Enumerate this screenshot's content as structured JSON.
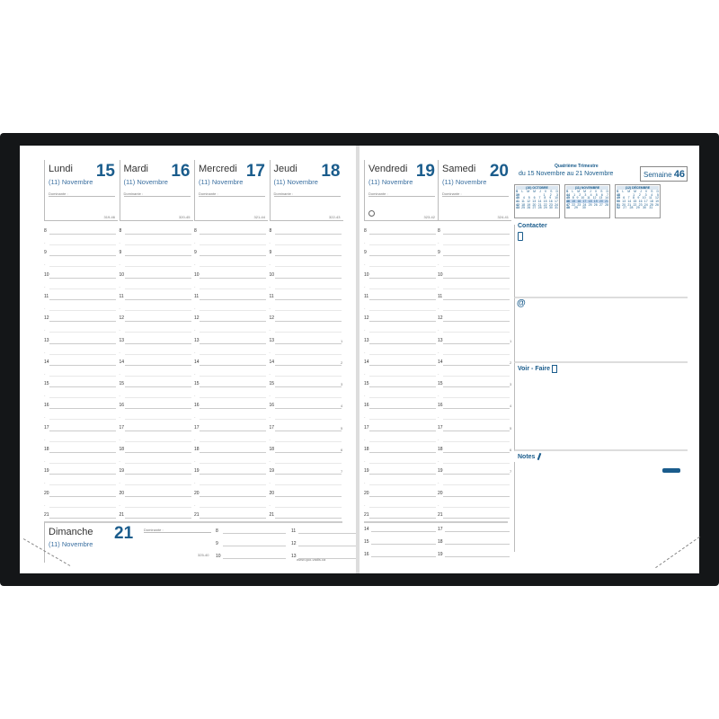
{
  "hours": [
    "8",
    "9",
    "10",
    "11",
    "12",
    "13",
    "14",
    "15",
    "16",
    "17",
    "18",
    "19",
    "20",
    "21"
  ],
  "side_numbers": [
    "1",
    "2",
    "3",
    "4",
    "5",
    "6",
    "7"
  ],
  "dominante_label": "Dominante :",
  "days_left": [
    {
      "name": "Lundi",
      "num": "15",
      "month": "(11) Novembre",
      "code": "319-46"
    },
    {
      "name": "Mardi",
      "num": "16",
      "month": "(11) Novembre",
      "code": "320-45"
    },
    {
      "name": "Mercredi",
      "num": "17",
      "month": "(11) Novembre",
      "code": "321-44"
    },
    {
      "name": "Jeudi",
      "num": "18",
      "month": "(11) Novembre",
      "code": "322-43"
    }
  ],
  "days_right": [
    {
      "name": "Vendredi",
      "num": "19",
      "month": "(11) Novembre",
      "code": "323-42"
    },
    {
      "name": "Samedi",
      "num": "20",
      "month": "(11) Novembre",
      "code": "324-41"
    }
  ],
  "sunday": {
    "name": "Dimanche",
    "num": "21",
    "month": "(11) Novembre",
    "code": "325-40",
    "hours_a": [
      "8",
      "9",
      "10"
    ],
    "hours_b": [
      "11",
      "12",
      "13"
    ]
  },
  "saturday_extra": {
    "hours_a": [
      "14",
      "15",
      "16"
    ],
    "hours_b": [
      "17",
      "18",
      "19"
    ]
  },
  "website": "www.quo-vadis.ca",
  "quarter": {
    "title": "Quatrième Trimestre",
    "range": "du 15 Novembre au 21 Novembre"
  },
  "week": {
    "label": "Semaine",
    "num": "46"
  },
  "calendars": [
    {
      "month": "(10) OCTOBRE",
      "rows": [
        [
          "S",
          "L",
          "M",
          "M",
          "J",
          "V",
          "S",
          "D"
        ],
        [
          "39",
          "",
          "",
          "",
          "",
          "1",
          "2",
          "3"
        ],
        [
          "40",
          "4",
          "5",
          "6",
          "7",
          "8",
          "9",
          "10"
        ],
        [
          "41",
          "11",
          "12",
          "13",
          "14",
          "15",
          "16",
          "17"
        ],
        [
          "42",
          "18",
          "19",
          "20",
          "21",
          "22",
          "23",
          "24"
        ],
        [
          "43",
          "25",
          "26",
          "27",
          "28",
          "29",
          "30",
          "31"
        ]
      ]
    },
    {
      "month": "(11) NOVEMBRE",
      "rows": [
        [
          "S",
          "L",
          "M",
          "M",
          "J",
          "V",
          "S",
          "D"
        ],
        [
          "44",
          "1",
          "2",
          "3",
          "4",
          "5",
          "6",
          "7"
        ],
        [
          "45",
          "8",
          "9",
          "10",
          "11",
          "12",
          "13",
          "14"
        ],
        [
          "46",
          "15",
          "16",
          "17",
          "18",
          "19",
          "20",
          "21"
        ],
        [
          "47",
          "22",
          "23",
          "24",
          "25",
          "26",
          "27",
          "28"
        ],
        [
          "48",
          "29",
          "30",
          "",
          "",
          "",
          "",
          ""
        ]
      ]
    },
    {
      "month": "(12) DÉCEMBRE",
      "rows": [
        [
          "S",
          "L",
          "M",
          "M",
          "J",
          "V",
          "S",
          "D"
        ],
        [
          "48",
          "",
          "",
          "1",
          "2",
          "3",
          "4",
          "5"
        ],
        [
          "49",
          "6",
          "7",
          "8",
          "9",
          "10",
          "11",
          "12"
        ],
        [
          "50",
          "13",
          "14",
          "15",
          "16",
          "17",
          "18",
          "19"
        ],
        [
          "51",
          "20",
          "21",
          "22",
          "23",
          "24",
          "25",
          "26"
        ],
        [
          "52",
          "27",
          "28",
          "29",
          "30",
          "31",
          "",
          ""
        ]
      ]
    }
  ],
  "current_week_row": 3,
  "sections": {
    "contact": "Contacter",
    "at": "@",
    "todo": "Voir - Faire",
    "notes": "Notes"
  },
  "colors": {
    "accent": "#1a5c8c",
    "cover": "#141618"
  }
}
